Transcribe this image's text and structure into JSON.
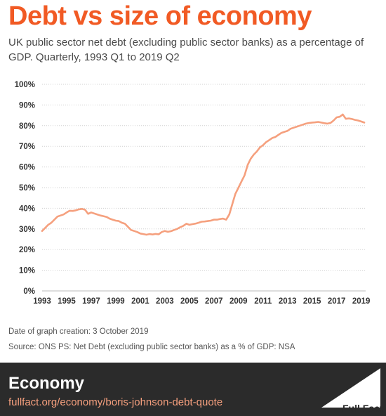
{
  "header": {
    "title": "Debt vs size of economy",
    "subtitle": "UK public sector net debt (excluding public sector banks) as a percentage of GDP. Quarterly, 1993 Q1 to 2019 Q2"
  },
  "notes": {
    "date_created": "Date of graph creation: 3 October 2019",
    "source": "Source: ONS PS: Net Debt (excluding public sector banks) as a % of GDP: NSA"
  },
  "footer": {
    "section": "Economy",
    "url": "fullfact.org/economy/boris-johnson-debt-quote",
    "logo_text": "Full Fact"
  },
  "colors": {
    "accent": "#f15a24",
    "line": "#f5a07e",
    "grid": "#d0d0d0",
    "footer_bg": "#2b2b2b"
  },
  "chart_data": {
    "type": "line",
    "title": "Debt vs size of economy",
    "subtitle": "UK public sector net debt (excluding public sector banks) as a percentage of GDP. Quarterly, 1993 Q1 to 2019 Q2",
    "xlabel": "",
    "ylabel": "",
    "xlim": [
      1993.0,
      2019.25
    ],
    "ylim": [
      0,
      100
    ],
    "y_ticks": [
      0,
      10,
      20,
      30,
      40,
      50,
      60,
      70,
      80,
      90,
      100
    ],
    "y_tick_labels": [
      "0%",
      "10%",
      "20%",
      "30%",
      "40%",
      "50%",
      "60%",
      "70%",
      "80%",
      "90%",
      "100%"
    ],
    "x_ticks": [
      1993,
      1995,
      1997,
      1999,
      2001,
      2003,
      2005,
      2007,
      2009,
      2011,
      2013,
      2015,
      2017,
      2019
    ],
    "x_tick_labels": [
      "1993",
      "1995",
      "1997",
      "1999",
      "2001",
      "2003",
      "2005",
      "2007",
      "2009",
      "2011",
      "2013",
      "2015",
      "2017",
      "2019"
    ],
    "grid": true,
    "series": [
      {
        "name": "",
        "x": [
          1993.0,
          1993.25,
          1993.5,
          1993.75,
          1994.0,
          1994.25,
          1994.5,
          1994.75,
          1995.0,
          1995.25,
          1995.5,
          1995.75,
          1996.0,
          1996.25,
          1996.5,
          1996.75,
          1997.0,
          1997.25,
          1997.5,
          1997.75,
          1998.0,
          1998.25,
          1998.5,
          1998.75,
          1999.0,
          1999.25,
          1999.5,
          1999.75,
          2000.0,
          2000.25,
          2000.5,
          2000.75,
          2001.0,
          2001.25,
          2001.5,
          2001.75,
          2002.0,
          2002.25,
          2002.5,
          2002.75,
          2003.0,
          2003.25,
          2003.5,
          2003.75,
          2004.0,
          2004.25,
          2004.5,
          2004.75,
          2005.0,
          2005.25,
          2005.5,
          2005.75,
          2006.0,
          2006.25,
          2006.5,
          2006.75,
          2007.0,
          2007.25,
          2007.5,
          2007.75,
          2008.0,
          2008.25,
          2008.5,
          2008.75,
          2009.0,
          2009.25,
          2009.5,
          2009.75,
          2010.0,
          2010.25,
          2010.5,
          2010.75,
          2011.0,
          2011.25,
          2011.5,
          2011.75,
          2012.0,
          2012.25,
          2012.5,
          2012.75,
          2013.0,
          2013.25,
          2013.5,
          2013.75,
          2014.0,
          2014.25,
          2014.5,
          2014.75,
          2015.0,
          2015.25,
          2015.5,
          2015.75,
          2016.0,
          2016.25,
          2016.5,
          2016.75,
          2017.0,
          2017.25,
          2017.5,
          2017.75,
          2018.0,
          2018.25,
          2018.5,
          2018.75,
          2019.0,
          2019.25
        ],
        "values": [
          29,
          30.5,
          32,
          33,
          34.5,
          36,
          36.5,
          37,
          38,
          38.8,
          38.7,
          39,
          39.5,
          39.7,
          39.3,
          37.3,
          38,
          37.5,
          37,
          36.5,
          36.2,
          35.8,
          35,
          34.5,
          34,
          33.8,
          33,
          32.5,
          31,
          29.5,
          29,
          28.5,
          27.8,
          27.5,
          27.2,
          27.5,
          27.3,
          27.6,
          27.4,
          28.5,
          29,
          28.6,
          28.9,
          29.5,
          30,
          30.8,
          31.5,
          32.5,
          32,
          32.3,
          32.6,
          33,
          33.5,
          33.6,
          33.8,
          34,
          34.5,
          34.5,
          34.8,
          35,
          34.5,
          37,
          42,
          47,
          50,
          53,
          56,
          61,
          64,
          66,
          67.5,
          69.5,
          70.5,
          72,
          73,
          74,
          74.5,
          75.5,
          76.5,
          77,
          77.5,
          78.5,
          79,
          79.5,
          80,
          80.5,
          81,
          81.3,
          81.5,
          81.6,
          81.8,
          81.5,
          81.2,
          81,
          81.3,
          82.5,
          84,
          84.3,
          85.4,
          83.3,
          83.5,
          83.2,
          82.8,
          82.5,
          82,
          81.5
        ]
      }
    ]
  }
}
